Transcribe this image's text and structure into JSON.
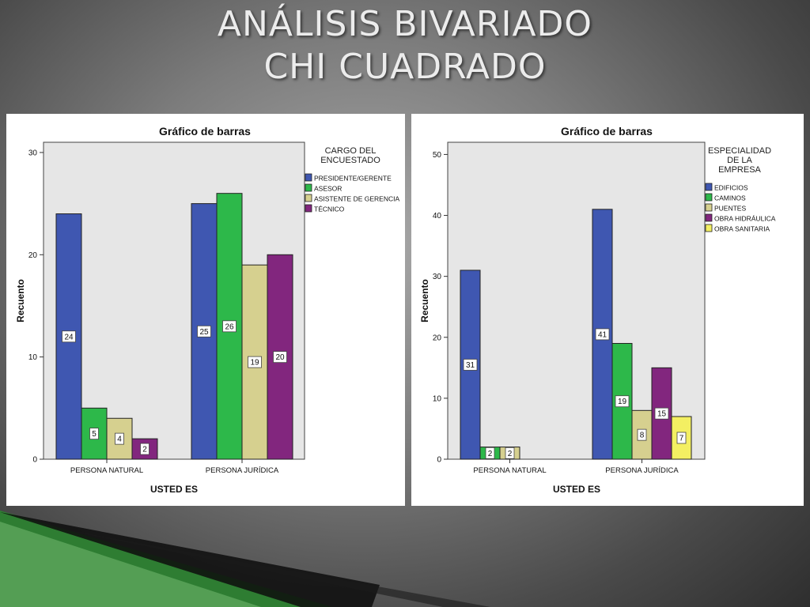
{
  "slide": {
    "title_line1": "ANÁLISIS BIVARIADO",
    "title_line2": "CHI CUADRADO"
  },
  "chart_data": [
    {
      "type": "bar",
      "title": "Gráfico de barras",
      "xlabel": "USTED ES",
      "ylabel": "Recuento",
      "categories": [
        "PERSONA NATURAL",
        "PERSONA JURÍDICA"
      ],
      "ylim": [
        0,
        31
      ],
      "yticks": [
        0,
        10,
        20,
        30
      ],
      "legend_title": [
        "CARGO DEL",
        "ENCUESTADO"
      ],
      "legend_position": "right",
      "grid": false,
      "background": "#e6e6e6",
      "series": [
        {
          "name": "PRESIDENTE/GERENTE",
          "color": "#3f57b1",
          "values": [
            24,
            25
          ]
        },
        {
          "name": "ASESOR",
          "color": "#2db84a",
          "values": [
            5,
            26
          ]
        },
        {
          "name": "ASISTENTE DE GERENCIA",
          "color": "#d6d08f",
          "values": [
            4,
            19
          ]
        },
        {
          "name": "TÉCNICO",
          "color": "#82267e",
          "values": [
            2,
            20
          ]
        }
      ]
    },
    {
      "type": "bar",
      "title": "Gráfico de barras",
      "xlabel": "USTED ES",
      "ylabel": "Recuento",
      "categories": [
        "PERSONA NATURAL",
        "PERSONA JURÍDICA"
      ],
      "ylim": [
        0,
        52
      ],
      "yticks": [
        0,
        10,
        20,
        30,
        40,
        50
      ],
      "legend_title": [
        "ESPECIALIDAD",
        "DE LA",
        "EMPRESA"
      ],
      "legend_position": "right",
      "grid": false,
      "background": "#e6e6e6",
      "series": [
        {
          "name": "EDIFICIOS",
          "color": "#3f57b1",
          "values": [
            31,
            41
          ]
        },
        {
          "name": "CAMINOS",
          "color": "#2db84a",
          "values": [
            2,
            19
          ]
        },
        {
          "name": "PUENTES",
          "color": "#d6d08f",
          "values": [
            2,
            8
          ]
        },
        {
          "name": "OBRA HIDRÁULICA",
          "color": "#82267e",
          "values": [
            0,
            15
          ]
        },
        {
          "name": "OBRA SANITARIA",
          "color": "#f3ef62",
          "values": [
            0,
            7
          ]
        }
      ]
    }
  ]
}
